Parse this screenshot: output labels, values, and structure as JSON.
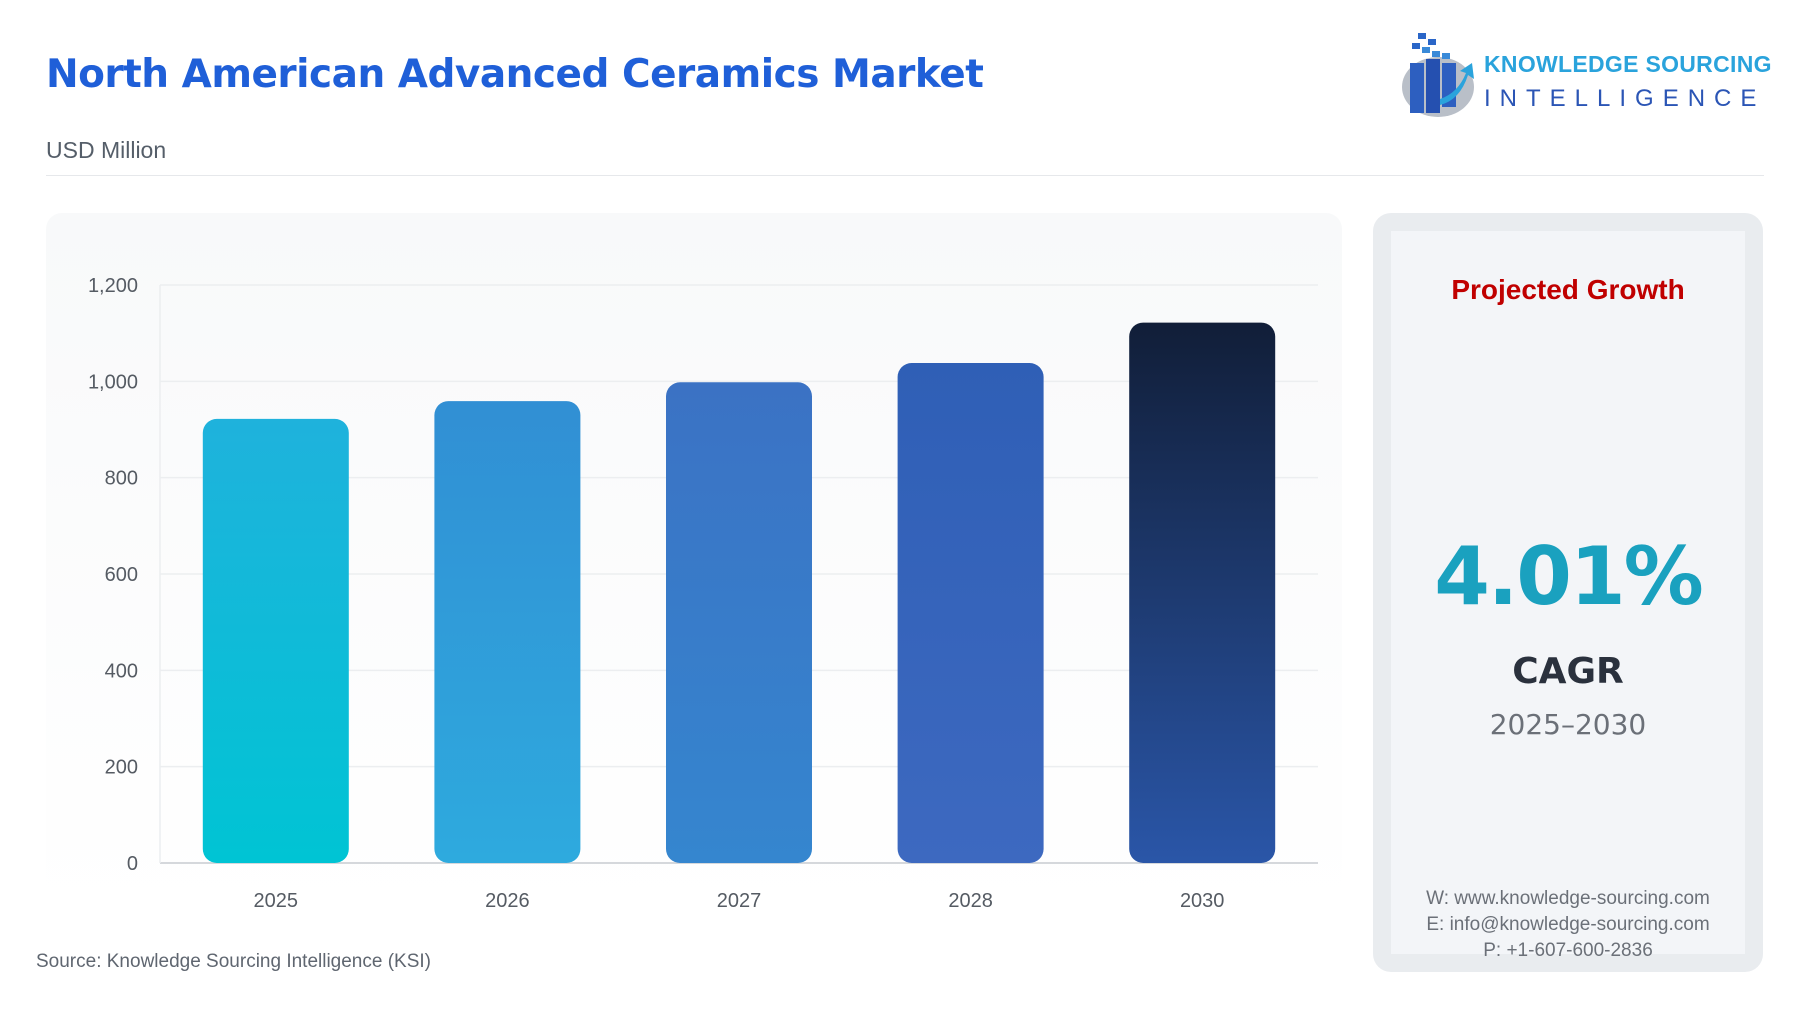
{
  "header": {
    "title": "North American Advanced Ceramics Market",
    "unit": "USD Million"
  },
  "logo": {
    "line1": "KNOWLEDGE SOURCING",
    "line2": "INTELLIGENCE"
  },
  "chart_data": {
    "type": "bar",
    "title": "North American Advanced Ceramics Market",
    "ylabel": "USD Million",
    "xlabel": "",
    "categories": [
      "2025",
      "2026",
      "2027",
      "2028",
      "2030"
    ],
    "values": [
      922,
      959,
      998,
      1038,
      1122
    ],
    "ylim": [
      0,
      1200
    ],
    "yticks": [
      0,
      200,
      400,
      600,
      800,
      1000,
      1200
    ],
    "ytick_labels": [
      "0",
      "200",
      "400",
      "600",
      "800",
      "1,000",
      "1,200"
    ],
    "grid": true,
    "legend": "none",
    "colors": [
      [
        "#00c4d4",
        "#1fb2dc"
      ],
      [
        "#2eaade",
        "#318fd4"
      ],
      [
        "#3586cf",
        "#3b72c4"
      ],
      [
        "#3d69c0",
        "#2f5fb6"
      ],
      [
        "#2a56a8",
        "#111e38"
      ]
    ]
  },
  "panel": {
    "heading": "Projected Growth",
    "value": "4.01%",
    "label": "CAGR",
    "period": "2025–2030",
    "website": "W: www.knowledge-sourcing.com",
    "email": "E: info@knowledge-sourcing.com",
    "phone": "P: +1-607-600-2836"
  },
  "source": "Source: Knowledge Sourcing Intelligence (KSI)"
}
